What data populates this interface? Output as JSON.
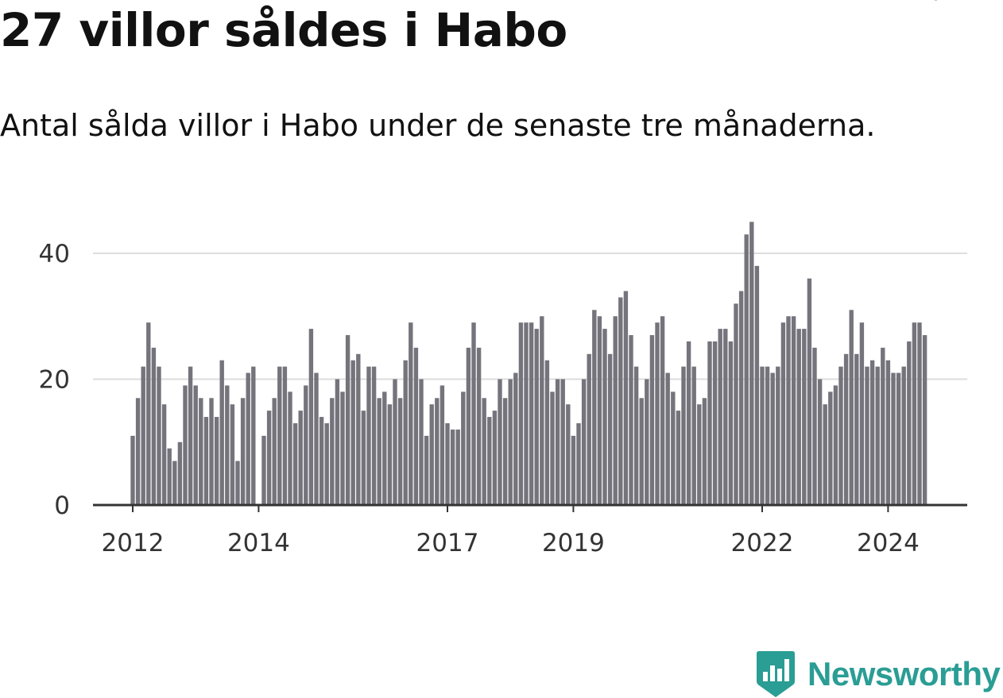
{
  "title": "27 villor såldes i Habo",
  "subtitle": "Antal sålda villor i Habo under de senaste tre månaderna.",
  "brand": {
    "name": "Newsworthy",
    "color": "#2a9d94",
    "icon": "newsworthy-chart-badge-icon"
  },
  "colors": {
    "bar": "#75747c",
    "highlight": "#1a9e96",
    "grid": "#dddddd",
    "axis": "#333333"
  },
  "chart_data": {
    "type": "bar",
    "x_start": "2012-01",
    "x_frequency": "monthly",
    "values": [
      11,
      17,
      22,
      29,
      25,
      22,
      16,
      9,
      7,
      10,
      19,
      22,
      19,
      17,
      14,
      17,
      14,
      23,
      19,
      16,
      7,
      17,
      21,
      22,
      0,
      11,
      15,
      17,
      22,
      22,
      18,
      13,
      15,
      19,
      28,
      21,
      14,
      13,
      17,
      20,
      18,
      27,
      23,
      24,
      15,
      22,
      22,
      17,
      18,
      16,
      20,
      17,
      23,
      29,
      25,
      20,
      11,
      16,
      17,
      19,
      13,
      12,
      12,
      18,
      25,
      29,
      25,
      17,
      14,
      15,
      20,
      17,
      20,
      21,
      29,
      29,
      29,
      28,
      30,
      23,
      18,
      20,
      20,
      16,
      11,
      13,
      20,
      24,
      31,
      30,
      28,
      24,
      30,
      33,
      34,
      27,
      22,
      17,
      20,
      27,
      29,
      30,
      21,
      18,
      15,
      22,
      26,
      22,
      16,
      17,
      26,
      26,
      28,
      28,
      26,
      32,
      34,
      43,
      45,
      38,
      22,
      22,
      21,
      22,
      29,
      30,
      30,
      28,
      28,
      36,
      25,
      20,
      16,
      18,
      19,
      22,
      24,
      31,
      24,
      29,
      22,
      23,
      22,
      25,
      23,
      21,
      21,
      22,
      26,
      29,
      29,
      27
    ],
    "x_tick_labels": [
      "2012",
      "2014",
      "2017",
      "2019",
      "2022",
      "2024"
    ],
    "x_tick_years": [
      2012,
      2014,
      2017,
      2019,
      2022,
      2024
    ],
    "y_ticks": [
      0,
      20,
      40
    ],
    "ylim": [
      0,
      46
    ],
    "highlight": {
      "index": 152,
      "label": "27"
    },
    "title": "27 villor såldes i Habo",
    "xlabel": "",
    "ylabel": "",
    "grid": true,
    "legend": "none"
  }
}
